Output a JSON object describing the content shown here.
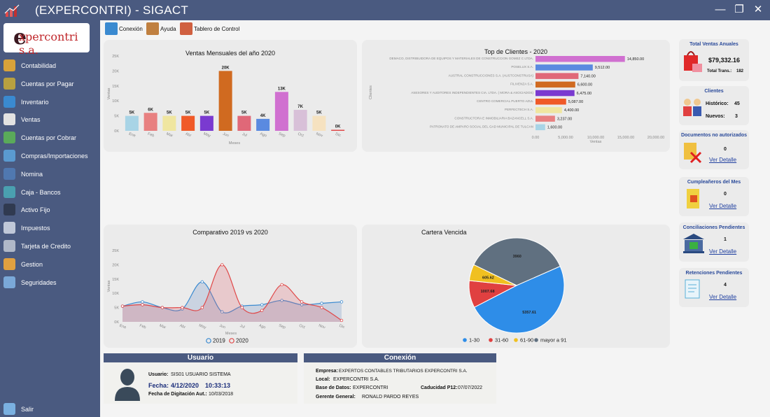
{
  "window": {
    "title": "(EXPERCONTRI) - SIGACT",
    "minimize": "—",
    "maximize": "❐",
    "close": "✕"
  },
  "logo": {
    "x": "e",
    "text": "xpercontri s.a."
  },
  "sidebar": {
    "items": [
      {
        "label": "Contabilidad",
        "icon": "ledger-icon",
        "color": "#d9a23a"
      },
      {
        "label": "Cuentas por Pagar",
        "icon": "money-bag-icon",
        "color": "#b8a040"
      },
      {
        "label": "Inventario",
        "icon": "globe-icon",
        "color": "#3a8ad0"
      },
      {
        "label": "Ventas",
        "icon": "cart-icon",
        "color": "#e2e2e2"
      },
      {
        "label": "Cuentas por Cobrar",
        "icon": "coins-icon",
        "color": "#5aaa5a"
      },
      {
        "label": "Compras/Importaciones",
        "icon": "monitor-icon",
        "color": "#5a9ad0"
      },
      {
        "label": "Nomina",
        "icon": "people-icon",
        "color": "#5078b0"
      },
      {
        "label": "Caja - Bancos",
        "icon": "bank-icon",
        "color": "#4aa0b0"
      },
      {
        "label": "Activo Fijo",
        "icon": "tools-icon",
        "color": "#303a50"
      },
      {
        "label": "Impuestos",
        "icon": "document-icon",
        "color": "#c0c8d8"
      },
      {
        "label": "Tarjeta de Credito",
        "icon": "credit-card-icon",
        "color": "#b0b8c8"
      },
      {
        "label": "Gestion",
        "icon": "pie-chart-icon",
        "color": "#e0a040"
      },
      {
        "label": "Seguridades",
        "icon": "security-icon",
        "color": "#7aa8d8"
      }
    ],
    "exit": {
      "label": "Salir",
      "icon": "exit-icon"
    }
  },
  "toolbar": {
    "items": [
      {
        "label": "Conexión",
        "icon": "network-icon",
        "color": "#3a8ad0"
      },
      {
        "label": "Ayuda",
        "icon": "help-person-icon",
        "color": "#c08040"
      },
      {
        "label": "Tablero de Control",
        "icon": "bar-chart-icon",
        "color": "#d06040"
      }
    ]
  },
  "panels": {
    "ventas": {
      "title": "Ventas Mensuales del año 2020"
    },
    "top_clientes": {
      "title": "Top de Clientes - 2020"
    },
    "comparativo": {
      "title": "Comparativo 2019 vs 2020"
    },
    "cartera": {
      "title": "Cartera Vencida"
    }
  },
  "chart_data": [
    {
      "type": "bar",
      "title": "Ventas Mensuales del año 2020",
      "xlabel": "Meses",
      "ylabel": "Ventas",
      "ylim": [
        0,
        25
      ],
      "yticks": [
        "0K",
        "5K",
        "10K",
        "15K",
        "20K",
        "25K"
      ],
      "categories": [
        "Ene",
        "Feb",
        "Mar",
        "Abr",
        "May",
        "Jun",
        "Jul",
        "Ago",
        "Sep",
        "Oct",
        "Nov",
        "Dic"
      ],
      "values": [
        5,
        6,
        5,
        5,
        5,
        20,
        5,
        4,
        13,
        7,
        5,
        0
      ],
      "labels": [
        "5K",
        "6K",
        "5K",
        "5K",
        "5K",
        "20K",
        "5K",
        "4K",
        "13K",
        "7K",
        "5K",
        "0K"
      ],
      "colors": [
        "#a8d4e6",
        "#e88080",
        "#f0e6a0",
        "#f05a28",
        "#7a3ad0",
        "#d06a20",
        "#e06878",
        "#5a8ae0",
        "#d070d0",
        "#d8c0d8",
        "#f6e2c0",
        "#e04848"
      ]
    },
    {
      "type": "bar",
      "orientation": "horizontal",
      "title": "Top de Clientes - 2020",
      "xlabel": "Ventas",
      "ylabel": "Clientes",
      "xlim": [
        0,
        20000
      ],
      "xticks": [
        "0.00",
        "5,000.00",
        "10,000.00",
        "15,000.00",
        "20,000.00"
      ],
      "categories": [
        "DEMACO, DISTRIBUIDORA DE EQUIPOS Y MATERIALES DE CONSTRUCCION GOMEZ C LTDA.",
        "POSELUX S.A.",
        "AUSTRAL CONSTRUCCIONES S.A. (AUSTCONSTRUSA)",
        "FILIVENZA S.A.",
        "ASESORES Y AUDITORES INDEPENDIENTES CIA. LTDA. ( MORA & ASOCIADOS)",
        "CENTRO COMERCIAL PUERTO AZUL",
        "PERFECTECH S.A.",
        "CONSTRUCTORA E INMOBILIARIA BAZANCELL S.A.",
        "PATRONATO DE AMPARO SOCIAL DEL GAD MUNICIPAL DE TULCAN"
      ],
      "values": [
        14850,
        9512,
        7140,
        6600,
        6475,
        5087,
        4400,
        3237,
        1600
      ],
      "labels": [
        "14,850.00",
        "9,512.00",
        "7,140.00",
        "6,600.00",
        "6,475.00",
        "5,087.00",
        "4,400.00",
        "3,237.00",
        "1,600.00"
      ],
      "colors": [
        "#d070d0",
        "#5a8ae0",
        "#e06878",
        "#d06a20",
        "#7a3ad0",
        "#f05a28",
        "#f0e6a0",
        "#e88080",
        "#a8d4e6"
      ]
    },
    {
      "type": "area",
      "title": "Comparativo 2019 vs 2020",
      "xlabel": "Meses",
      "ylabel": "Ventas",
      "ylim": [
        0,
        25
      ],
      "yticks": [
        "0K",
        "5K",
        "10K",
        "15K",
        "20K",
        "25K"
      ],
      "categories": [
        "Ene",
        "Feb",
        "Mar",
        "Abr",
        "May",
        "Jun",
        "Jul",
        "Ago",
        "Sep",
        "Oct",
        "Nov",
        "Dic"
      ],
      "series": [
        {
          "name": "2019",
          "color": "#3a8ad0",
          "values": [
            5.5,
            7,
            5,
            4.5,
            14,
            3.5,
            5.5,
            6,
            7.5,
            6,
            6.5,
            7
          ]
        },
        {
          "name": "2020",
          "color": "#e04848",
          "values": [
            5.5,
            6,
            5,
            5,
            5,
            20,
            5,
            4,
            13,
            7,
            5,
            0.5
          ]
        }
      ],
      "legend": "bottom"
    },
    {
      "type": "pie",
      "title": "Cartera Vencida",
      "slices": [
        {
          "name": "1-30",
          "value": 5357.61,
          "label": "5357.61",
          "color": "#2e8de8"
        },
        {
          "name": "31-60",
          "value": 1007.68,
          "label": "1007.68",
          "color": "#e04040"
        },
        {
          "name": "61-90",
          "value": 605.62,
          "label": "605.62",
          "color": "#f0c020"
        },
        {
          "name": "mayor a 91",
          "value": 3960,
          "label": "3960",
          "color": "#607080"
        }
      ],
      "legend": "bottom"
    }
  ],
  "cards": {
    "ventas_anuales": {
      "title": "Total Ventas Anuales",
      "amount": "$79,332.16",
      "trans_label": "Total Trans.:",
      "trans": "182"
    },
    "clientes": {
      "title": "Clientes",
      "historico_label": "Histórico:",
      "historico": "45",
      "nuevos_label": "Nuevos:",
      "nuevos": "3"
    },
    "documentos": {
      "title": "Documentos no autorizados",
      "count": "0",
      "link": "Ver Detalle"
    },
    "cumpleanos": {
      "title": "Cumpleañeros del Mes",
      "count": "0",
      "link": "Ver Detalle"
    },
    "conciliaciones": {
      "title": "Conciliaciones Pendientes",
      "count": "1",
      "link": "Ver Detalle"
    },
    "retenciones": {
      "title": "Retenciones Pendientes",
      "count": "4",
      "link": "Ver Detalle"
    }
  },
  "usuario": {
    "header": "Usuario",
    "usuario_label": "Usuario:",
    "usuario": "SIS01 USUARIO SISTEMA",
    "fecha_label": "Fecha:",
    "fecha": "4/12/2020",
    "hora": "10:33:13",
    "digitacion_label": "Fecha de Digitación Aut.:",
    "digitacion": "10/03/2018"
  },
  "conexion": {
    "header": "Conexión",
    "empresa_label": "Empresa:",
    "empresa": "EXPERTOS CONTABLES TRIBUTARIOS EXPERCONTRI S.A.",
    "local_label": "Local:",
    "local": "EXPERCONTRI S.A.",
    "bd_label": "Base de Datos:",
    "bd": "EXPERCONTRI",
    "caducidad_label": "Caducidad P12:",
    "caducidad": "07/07/2022",
    "gerente_label": "Gerente General:",
    "gerente": "RONALD PARDO REYES"
  }
}
